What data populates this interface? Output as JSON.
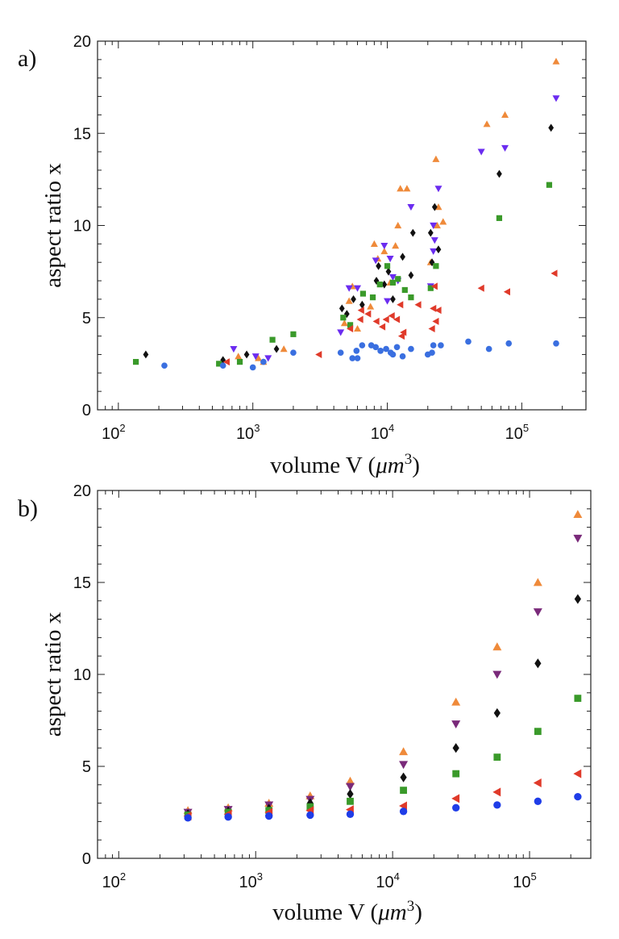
{
  "figure": {
    "panels": [
      "a)",
      "b)"
    ],
    "legend_note": "no legend shown"
  },
  "chart_data": [
    {
      "type": "scatter",
      "panel_label": "a)",
      "xscale": "log",
      "xlim": [
        70,
        300000
      ],
      "ylim": [
        0,
        20
      ],
      "xlabel": "volume V (μm³)",
      "xlabel_parts": {
        "prefix": "volume V (",
        "unit": "μm",
        "exp": "3",
        "suffix": ")"
      },
      "ylabel": "aspect ratio x",
      "xticks": [
        {
          "base": "10",
          "exp": "2",
          "value": 100
        },
        {
          "base": "10",
          "exp": "3",
          "value": 1000
        },
        {
          "base": "10",
          "exp": "4",
          "value": 10000
        },
        {
          "base": "10",
          "exp": "5",
          "value": 100000
        }
      ],
      "yticks": [
        0,
        5,
        10,
        15,
        20
      ],
      "grid": false,
      "series": [
        {
          "name": "orange up-triangle",
          "marker": "triangle-up",
          "color": "#ef8a3a",
          "points": [
            [
              780,
              2.9
            ],
            [
              1100,
              2.8
            ],
            [
              1200,
              2.6
            ],
            [
              1700,
              3.3
            ],
            [
              5500,
              6.7
            ],
            [
              4800,
              4.7
            ],
            [
              5200,
              5.9
            ],
            [
              8000,
              9.0
            ],
            [
              8500,
              8.2
            ],
            [
              9500,
              8.6
            ],
            [
              11500,
              8.9
            ],
            [
              12000,
              10.0
            ],
            [
              12500,
              12.0
            ],
            [
              14000,
              12.0
            ],
            [
              10500,
              6.9
            ],
            [
              7500,
              5.6
            ],
            [
              6000,
              4.4
            ],
            [
              23000,
              13.6
            ],
            [
              24000,
              11.0
            ],
            [
              23500,
              10.0
            ],
            [
              21000,
              8.0
            ],
            [
              26000,
              10.2
            ],
            [
              55000,
              15.5
            ],
            [
              75000,
              16.0
            ],
            [
              180000,
              18.9
            ]
          ]
        },
        {
          "name": "purple down-triangle",
          "marker": "triangle-down",
          "color": "#6b2cf0",
          "points": [
            [
              720,
              3.3
            ],
            [
              1050,
              2.9
            ],
            [
              1300,
              2.8
            ],
            [
              4500,
              4.2
            ],
            [
              5200,
              6.6
            ],
            [
              6000,
              6.6
            ],
            [
              8200,
              8.1
            ],
            [
              9500,
              8.9
            ],
            [
              10500,
              8.2
            ],
            [
              11000,
              7.2
            ],
            [
              10000,
              5.9
            ],
            [
              12000,
              7.0
            ],
            [
              15000,
              11.0
            ],
            [
              21000,
              6.7
            ],
            [
              22000,
              10.0
            ],
            [
              22500,
              9.2
            ],
            [
              22000,
              8.6
            ],
            [
              24000,
              12.0
            ],
            [
              50000,
              14.0
            ],
            [
              75000,
              14.2
            ],
            [
              180000,
              16.9
            ]
          ]
        },
        {
          "name": "black diamond",
          "marker": "diamond",
          "color": "#111111",
          "points": [
            [
              160,
              3.0
            ],
            [
              600,
              2.7
            ],
            [
              900,
              3.0
            ],
            [
              1500,
              3.3
            ],
            [
              4600,
              5.5
            ],
            [
              5000,
              5.2
            ],
            [
              5600,
              6.0
            ],
            [
              6500,
              5.7
            ],
            [
              8300,
              7.0
            ],
            [
              8600,
              7.8
            ],
            [
              9500,
              6.8
            ],
            [
              10200,
              7.5
            ],
            [
              11000,
              6.0
            ],
            [
              13000,
              8.3
            ],
            [
              15000,
              7.3
            ],
            [
              15500,
              9.6
            ],
            [
              21000,
              9.6
            ],
            [
              22500,
              11.0
            ],
            [
              24000,
              8.7
            ],
            [
              21500,
              8.0
            ],
            [
              68000,
              12.8
            ],
            [
              165000,
              15.3
            ]
          ]
        },
        {
          "name": "green square",
          "marker": "square",
          "color": "#3a9a2a",
          "points": [
            [
              135,
              2.6
            ],
            [
              560,
              2.5
            ],
            [
              800,
              2.6
            ],
            [
              1400,
              3.8
            ],
            [
              2000,
              4.1
            ],
            [
              4700,
              5.0
            ],
            [
              5300,
              4.6
            ],
            [
              6600,
              6.3
            ],
            [
              7800,
              6.1
            ],
            [
              8800,
              6.8
            ],
            [
              10000,
              7.8
            ],
            [
              11000,
              6.9
            ],
            [
              12000,
              7.1
            ],
            [
              13500,
              6.5
            ],
            [
              15000,
              6.1
            ],
            [
              21000,
              6.6
            ],
            [
              23000,
              7.8
            ],
            [
              68000,
              10.4
            ],
            [
              160000,
              12.2
            ]
          ]
        },
        {
          "name": "red left-triangle",
          "marker": "triangle-left",
          "color": "#e03a2a",
          "points": [
            [
              640,
              2.6
            ],
            [
              3100,
              3.0
            ],
            [
              5300,
              4.4
            ],
            [
              6300,
              4.9
            ],
            [
              6400,
              5.4
            ],
            [
              7200,
              5.2
            ],
            [
              8300,
              4.8
            ],
            [
              9200,
              4.5
            ],
            [
              9800,
              4.9
            ],
            [
              10800,
              5.1
            ],
            [
              11800,
              4.9
            ],
            [
              12500,
              5.7
            ],
            [
              12800,
              4.0
            ],
            [
              13200,
              4.2
            ],
            [
              17000,
              5.7
            ],
            [
              21500,
              4.4
            ],
            [
              22000,
              5.5
            ],
            [
              22500,
              6.7
            ],
            [
              24000,
              5.4
            ],
            [
              23000,
              4.8
            ],
            [
              50000,
              6.6
            ],
            [
              78000,
              6.4
            ],
            [
              175000,
              7.4
            ]
          ]
        },
        {
          "name": "blue circle",
          "marker": "circle",
          "color": "#3a6fe0",
          "points": [
            [
              220,
              2.4
            ],
            [
              600,
              2.4
            ],
            [
              1000,
              2.3
            ],
            [
              1200,
              2.6
            ],
            [
              2000,
              3.1
            ],
            [
              4500,
              3.1
            ],
            [
              5500,
              2.8
            ],
            [
              6000,
              2.8
            ],
            [
              5900,
              3.2
            ],
            [
              6500,
              3.5
            ],
            [
              7600,
              3.5
            ],
            [
              8200,
              3.4
            ],
            [
              8900,
              3.2
            ],
            [
              9800,
              3.3
            ],
            [
              10600,
              3.1
            ],
            [
              11000,
              3.0
            ],
            [
              11800,
              3.4
            ],
            [
              13000,
              2.9
            ],
            [
              15000,
              3.3
            ],
            [
              20000,
              3.0
            ],
            [
              22000,
              3.5
            ],
            [
              21500,
              3.1
            ],
            [
              25000,
              3.5
            ],
            [
              40000,
              3.7
            ],
            [
              57000,
              3.3
            ],
            [
              80000,
              3.6
            ],
            [
              180000,
              3.6
            ]
          ]
        }
      ]
    },
    {
      "type": "scatter",
      "panel_label": "b)",
      "xscale": "log",
      "xlim": [
        70,
        280000
      ],
      "ylim": [
        0,
        20
      ],
      "xlabel": "volume V (μm³)",
      "xlabel_parts": {
        "prefix": "volume V (",
        "unit": "μm",
        "exp": "3",
        "suffix": ")"
      },
      "ylabel": "aspect ratio x",
      "xticks": [
        {
          "base": "10",
          "exp": "2",
          "value": 100
        },
        {
          "base": "10",
          "exp": "3",
          "value": 1000
        },
        {
          "base": "10",
          "exp": "4",
          "value": 10000
        },
        {
          "base": "10",
          "exp": "5",
          "value": 100000
        }
      ],
      "yticks": [
        0,
        5,
        10,
        15,
        20
      ],
      "grid": false,
      "series": [
        {
          "name": "orange up-triangle",
          "marker": "triangle-up",
          "color": "#ef8a3a",
          "points": [
            [
              320,
              2.6
            ],
            [
              630,
              2.75
            ],
            [
              1250,
              3.0
            ],
            [
              2500,
              3.4
            ],
            [
              4900,
              4.2
            ],
            [
              12000,
              5.8
            ],
            [
              29000,
              8.5
            ],
            [
              58000,
              11.5
            ],
            [
              115000,
              15.0
            ],
            [
              225000,
              18.7
            ]
          ]
        },
        {
          "name": "purple down-triangle",
          "marker": "triangle-down",
          "color": "#7a2a7a",
          "points": [
            [
              320,
              2.5
            ],
            [
              630,
              2.65
            ],
            [
              1250,
              2.9
            ],
            [
              2500,
              3.2
            ],
            [
              4900,
              3.9
            ],
            [
              12000,
              5.1
            ],
            [
              29000,
              7.3
            ],
            [
              58000,
              10.0
            ],
            [
              115000,
              13.4
            ],
            [
              225000,
              17.4
            ]
          ]
        },
        {
          "name": "black diamond",
          "marker": "diamond",
          "color": "#111111",
          "points": [
            [
              320,
              2.4
            ],
            [
              630,
              2.55
            ],
            [
              1250,
              2.7
            ],
            [
              2500,
              3.0
            ],
            [
              4900,
              3.5
            ],
            [
              12000,
              4.4
            ],
            [
              29000,
              6.0
            ],
            [
              58000,
              7.9
            ],
            [
              115000,
              10.6
            ],
            [
              225000,
              14.1
            ]
          ]
        },
        {
          "name": "green square",
          "marker": "square",
          "color": "#3a9a2a",
          "points": [
            [
              320,
              2.35
            ],
            [
              630,
              2.5
            ],
            [
              1250,
              2.6
            ],
            [
              2500,
              2.8
            ],
            [
              4900,
              3.1
            ],
            [
              12000,
              3.7
            ],
            [
              29000,
              4.6
            ],
            [
              58000,
              5.5
            ],
            [
              115000,
              6.9
            ],
            [
              225000,
              8.7
            ]
          ]
        },
        {
          "name": "red left-triangle",
          "marker": "triangle-left",
          "color": "#e03a2a",
          "points": [
            [
              320,
              2.3
            ],
            [
              630,
              2.4
            ],
            [
              1250,
              2.5
            ],
            [
              2500,
              2.6
            ],
            [
              4900,
              2.65
            ],
            [
              12000,
              2.85
            ],
            [
              29000,
              3.25
            ],
            [
              58000,
              3.6
            ],
            [
              115000,
              4.1
            ],
            [
              225000,
              4.6
            ]
          ]
        },
        {
          "name": "blue circle",
          "marker": "circle",
          "color": "#1f3de8",
          "points": [
            [
              320,
              2.2
            ],
            [
              630,
              2.25
            ],
            [
              1250,
              2.3
            ],
            [
              2500,
              2.35
            ],
            [
              4900,
              2.4
            ],
            [
              12000,
              2.55
            ],
            [
              29000,
              2.75
            ],
            [
              58000,
              2.9
            ],
            [
              115000,
              3.1
            ],
            [
              225000,
              3.35
            ]
          ]
        }
      ]
    }
  ]
}
